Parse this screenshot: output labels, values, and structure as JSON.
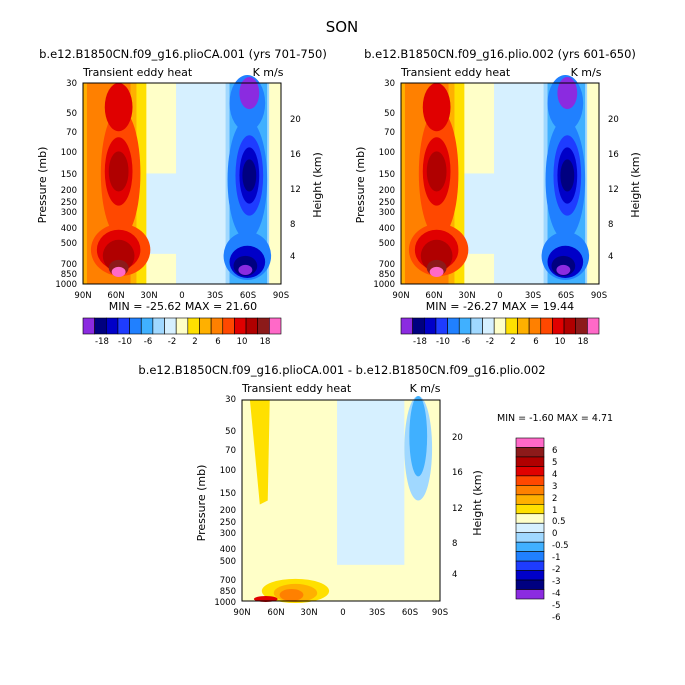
{
  "title": "SON",
  "colors": {
    "purple": "#8b2be0",
    "navy": "#000080",
    "blue1": "#0000c8",
    "blue2": "#1e3cff",
    "blue3": "#2080ff",
    "blue4": "#40b0ff",
    "blue5": "#a0d8ff",
    "blue6": "#d6f0ff",
    "cream": "#ffffc8",
    "yellow": "#ffe000",
    "orange1": "#ffb000",
    "orange2": "#ff8000",
    "orange3": "#ff4800",
    "red1": "#e00000",
    "red2": "#b00000",
    "darkred": "#8c1a1a",
    "pink": "#ff69c8"
  },
  "chart_data": [
    {
      "type": "contour",
      "title": "b.e12.B1850CN.f09_g16.plioCA.001 (yrs 701-750)",
      "left_label": "Transient eddy heat",
      "right_label": "K m/s",
      "xlabel": "",
      "ylabel": "Pressure (mb)",
      "y2label": "Height (km)",
      "x_ticks": [
        "90N",
        "60N",
        "30N",
        "0",
        "30S",
        "60S",
        "90S"
      ],
      "y_ticks": [
        "30",
        "50",
        "70",
        "100",
        "150",
        "200",
        "250",
        "300",
        "400",
        "500",
        "700",
        "850",
        "1000"
      ],
      "y2_ticks": [
        "20",
        "16",
        "12",
        "8",
        "4"
      ],
      "stats": "MIN = -25.62   MAX =  21.60",
      "colorbar_labels": [
        "-18",
        "-10",
        "-6",
        "-2",
        "2",
        "6",
        "10",
        "18"
      ],
      "levels": [
        -18,
        -14,
        -10,
        -8,
        -6,
        -4,
        -2,
        -1,
        1,
        2,
        4,
        6,
        8,
        10,
        14,
        18
      ]
    },
    {
      "type": "contour",
      "title": "b.e12.B1850CN.f09_g16.plio.002 (yrs 601-650)",
      "left_label": "Transient eddy heat",
      "right_label": "K m/s",
      "xlabel": "",
      "ylabel": "Pressure (mb)",
      "y2label": "Height (km)",
      "x_ticks": [
        "90N",
        "60N",
        "30N",
        "0",
        "30S",
        "60S",
        "90S"
      ],
      "y_ticks": [
        "30",
        "50",
        "70",
        "100",
        "150",
        "200",
        "250",
        "300",
        "400",
        "500",
        "700",
        "850",
        "1000"
      ],
      "y2_ticks": [
        "20",
        "16",
        "12",
        "8",
        "4"
      ],
      "stats": "MIN = -26.27   MAX =  19.44",
      "colorbar_labels": [
        "-18",
        "-10",
        "-6",
        "-2",
        "2",
        "6",
        "10",
        "18"
      ],
      "levels": [
        -18,
        -14,
        -10,
        -8,
        -6,
        -4,
        -2,
        -1,
        1,
        2,
        4,
        6,
        8,
        10,
        14,
        18
      ]
    },
    {
      "type": "contour",
      "title": "b.e12.B1850CN.f09_g16.plioCA.001 - b.e12.B1850CN.f09_g16.plio.002",
      "left_label": "Transient eddy heat",
      "right_label": "K m/s",
      "xlabel": "",
      "ylabel": "Pressure (mb)",
      "y2label": "Height (km)",
      "x_ticks": [
        "90N",
        "60N",
        "30N",
        "0",
        "30S",
        "60S",
        "90S"
      ],
      "y_ticks": [
        "30",
        "50",
        "70",
        "100",
        "150",
        "200",
        "250",
        "300",
        "400",
        "500",
        "700",
        "850",
        "1000"
      ],
      "y2_ticks": [
        "20",
        "16",
        "12",
        "8",
        "4"
      ],
      "stats": "MIN =  -1.60   MAX =   4.71",
      "colorbar_labels": [
        "6",
        "5",
        "4",
        "3",
        "2",
        "1",
        "0.5",
        "0",
        "-0.5",
        "-1",
        "-2",
        "-3",
        "-4",
        "-5",
        "-6"
      ],
      "levels": [
        -6,
        -5,
        -4,
        -3,
        -2,
        -1,
        -0.5,
        0,
        0.5,
        1,
        2,
        3,
        4,
        5,
        6
      ]
    }
  ]
}
